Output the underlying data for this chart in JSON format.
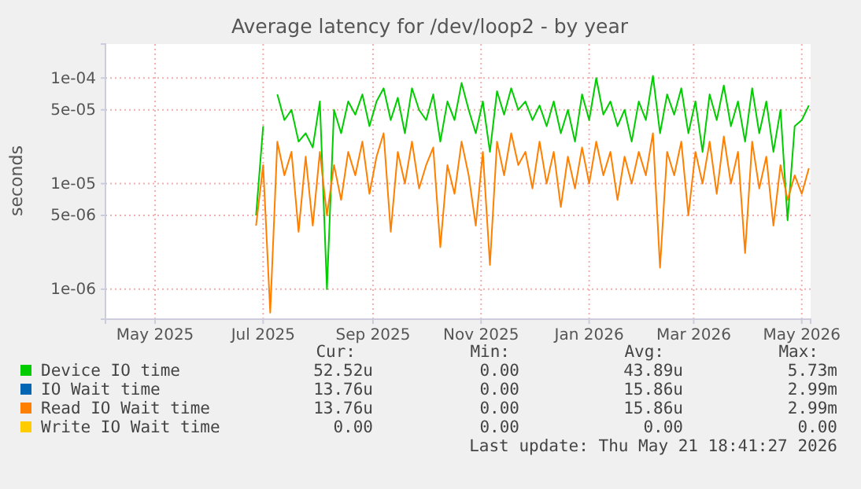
{
  "chart_data": {
    "type": "line",
    "title": "Average latency for /dev/loop2 - by year",
    "ylabel": "seconds",
    "x": [
      "2025-07-12",
      "2025-07-16",
      "2025-07-20",
      "2025-07-24",
      "2025-07-28",
      "2025-08-01",
      "2025-08-05",
      "2025-08-09",
      "2025-08-13",
      "2025-08-17",
      "2025-08-21",
      "2025-08-25",
      "2025-08-29",
      "2025-09-02",
      "2025-09-06",
      "2025-09-10",
      "2025-09-14",
      "2025-09-18",
      "2025-09-22",
      "2025-09-26",
      "2025-09-30",
      "2025-10-04",
      "2025-10-08",
      "2025-10-12",
      "2025-10-16",
      "2025-10-20",
      "2025-10-24",
      "2025-10-28",
      "2025-11-01",
      "2025-11-05",
      "2025-11-09",
      "2025-11-13",
      "2025-11-17",
      "2025-11-21",
      "2025-11-25",
      "2025-11-29",
      "2025-12-03",
      "2025-12-07",
      "2025-12-11",
      "2025-12-15",
      "2025-12-19",
      "2025-12-23",
      "2025-12-27",
      "2025-12-31",
      "2026-01-04",
      "2026-01-08",
      "2026-01-12",
      "2026-01-16",
      "2026-01-20",
      "2026-01-24",
      "2026-01-28",
      "2026-02-01",
      "2026-02-05",
      "2026-02-09",
      "2026-02-13",
      "2026-02-17",
      "2026-02-21",
      "2026-02-25",
      "2026-03-01",
      "2026-03-05",
      "2026-03-09",
      "2026-03-13",
      "2026-03-17",
      "2026-03-21",
      "2026-03-25",
      "2026-03-29",
      "2026-04-02",
      "2026-04-06",
      "2026-04-10",
      "2026-04-14",
      "2026-04-18",
      "2026-04-22",
      "2026-04-26",
      "2026-04-30",
      "2026-05-04",
      "2026-05-08",
      "2026-05-12",
      "2026-05-16",
      "2026-05-20"
    ],
    "series": [
      {
        "name": "Device IO time",
        "color": "#00cc00",
        "values": [
          5e-06,
          3.5e-05,
          null,
          7e-05,
          4e-05,
          5e-05,
          2.5e-05,
          3e-05,
          2.2e-05,
          6e-05,
          1e-06,
          5e-05,
          3e-05,
          6e-05,
          4.5e-05,
          7e-05,
          3.5e-05,
          6e-05,
          8e-05,
          4e-05,
          6.5e-05,
          3e-05,
          8e-05,
          5e-05,
          4e-05,
          7e-05,
          2.5e-05,
          6e-05,
          4e-05,
          9e-05,
          5e-05,
          3e-05,
          6e-05,
          2e-05,
          7.5e-05,
          4.5e-05,
          8e-05,
          5e-05,
          6e-05,
          4e-05,
          5.5e-05,
          3.5e-05,
          6e-05,
          3e-05,
          5e-05,
          2.5e-05,
          7e-05,
          4e-05,
          0.0001,
          4.5e-05,
          6e-05,
          3.5e-05,
          5e-05,
          2.5e-05,
          6e-05,
          4e-05,
          0.000105,
          3e-05,
          7e-05,
          4.5e-05,
          8e-05,
          3e-05,
          6e-05,
          2e-05,
          7e-05,
          4e-05,
          8.5e-05,
          3.5e-05,
          6e-05,
          2.5e-05,
          8e-05,
          3e-05,
          6e-05,
          2e-05,
          5e-05,
          4.5e-06,
          3.5e-05,
          4e-05,
          5.5e-05
        ]
      },
      {
        "name": "IO Wait time",
        "color": "#0066b3",
        "values": [
          null,
          null,
          null,
          null,
          null,
          null,
          null,
          null,
          null,
          null,
          null,
          null,
          null,
          null,
          null,
          null,
          null,
          null,
          null,
          null,
          null,
          null,
          null,
          null,
          null,
          null,
          null,
          null,
          null,
          null,
          null,
          null,
          null,
          null,
          null,
          null,
          null,
          null,
          null,
          null,
          null,
          null,
          null,
          null,
          null,
          null,
          null,
          null,
          null,
          null,
          null,
          null,
          null,
          null,
          null,
          null,
          null,
          null,
          null,
          null,
          null,
          null,
          null,
          null,
          null,
          null,
          null,
          null,
          null,
          null,
          null,
          null,
          null,
          null,
          null,
          null,
          null,
          null,
          null
        ]
      },
      {
        "name": "Read IO Wait time",
        "color": "#ff8000",
        "values": [
          4e-06,
          1.5e-05,
          6e-07,
          2.5e-05,
          1.2e-05,
          2e-05,
          3.5e-06,
          1.8e-05,
          4e-06,
          2e-05,
          5e-06,
          1.5e-05,
          7e-06,
          2e-05,
          1.2e-05,
          2.5e-05,
          8e-06,
          1.8e-05,
          3e-05,
          3.5e-06,
          2e-05,
          1e-05,
          2.5e-05,
          9e-06,
          1.5e-05,
          2.2e-05,
          2.5e-06,
          1.5e-05,
          8e-06,
          2.5e-05,
          1.2e-05,
          4e-06,
          2e-05,
          1.7e-06,
          2.5e-05,
          1.2e-05,
          3e-05,
          1.5e-05,
          2e-05,
          9e-06,
          2.5e-05,
          1e-05,
          2e-05,
          6e-06,
          1.8e-05,
          9e-06,
          2.2e-05,
          1e-05,
          2.5e-05,
          1.2e-05,
          2e-05,
          7e-06,
          1.8e-05,
          1e-05,
          2e-05,
          1.2e-05,
          3e-05,
          1.6e-06,
          2e-05,
          1.2e-05,
          2.5e-05,
          5e-06,
          2e-05,
          1e-05,
          2.5e-05,
          8e-06,
          2.8e-05,
          1e-05,
          2e-05,
          2.2e-06,
          2.5e-05,
          9e-06,
          1.8e-05,
          4e-06,
          1.5e-05,
          7e-06,
          1.2e-05,
          8e-06,
          1.4e-05
        ]
      },
      {
        "name": "Write IO Wait time",
        "color": "#ffcc00",
        "values": [
          null,
          null,
          null,
          null,
          null,
          null,
          null,
          null,
          null,
          null,
          null,
          null,
          null,
          null,
          null,
          null,
          null,
          null,
          null,
          null,
          null,
          null,
          null,
          null,
          null,
          null,
          null,
          null,
          null,
          null,
          null,
          null,
          null,
          null,
          null,
          null,
          null,
          null,
          null,
          null,
          null,
          null,
          null,
          null,
          null,
          null,
          null,
          null,
          null,
          null,
          null,
          null,
          null,
          null,
          null,
          null,
          null,
          null,
          null,
          null,
          null,
          null,
          null,
          null,
          null,
          null,
          null,
          null,
          null,
          null,
          null,
          null,
          null,
          null,
          null,
          null,
          null,
          null,
          null
        ]
      }
    ],
    "log": true,
    "xlim": [
      "2025-04-18",
      "2026-05-21"
    ],
    "xticks": [
      {
        "value": "2025-05-16",
        "label": "May 2025"
      },
      {
        "value": "2025-07-16",
        "label": "Jul 2025"
      },
      {
        "value": "2025-09-16",
        "label": "Sep 2025"
      },
      {
        "value": "2025-11-16",
        "label": "Nov 2025"
      },
      {
        "value": "2026-01-16",
        "label": "Jan 2026"
      },
      {
        "value": "2026-03-16",
        "label": "Mar 2026"
      },
      {
        "value": "2026-05-16",
        "label": "May 2026"
      }
    ],
    "ylim": [
      5.2e-07,
      0.00021
    ],
    "yticks": [
      {
        "value": 1e-06,
        "label": "1e-06"
      },
      {
        "value": 5e-06,
        "label": "5e-06"
      },
      {
        "value": 1e-05,
        "label": "1e-05"
      },
      {
        "value": 5e-05,
        "label": "5e-05"
      },
      {
        "value": 0.0001,
        "label": "1e-04"
      }
    ],
    "grid": true,
    "legend": "bottom",
    "marker": "none",
    "line_style": "solid",
    "annotations": [
      "Cur:",
      "Min:",
      "Avg:",
      "Max:",
      "52.52u",
      "0.00",
      "43.89u",
      "5.73m",
      "13.76u",
      "0.00",
      "15.86u",
      "2.99m",
      "13.76u",
      "0.00",
      "15.86u",
      "2.99m",
      "0.00",
      "0.00",
      "0.00",
      "0.00",
      "Last update: Thu May 21 18:41:27 2026"
    ]
  }
}
